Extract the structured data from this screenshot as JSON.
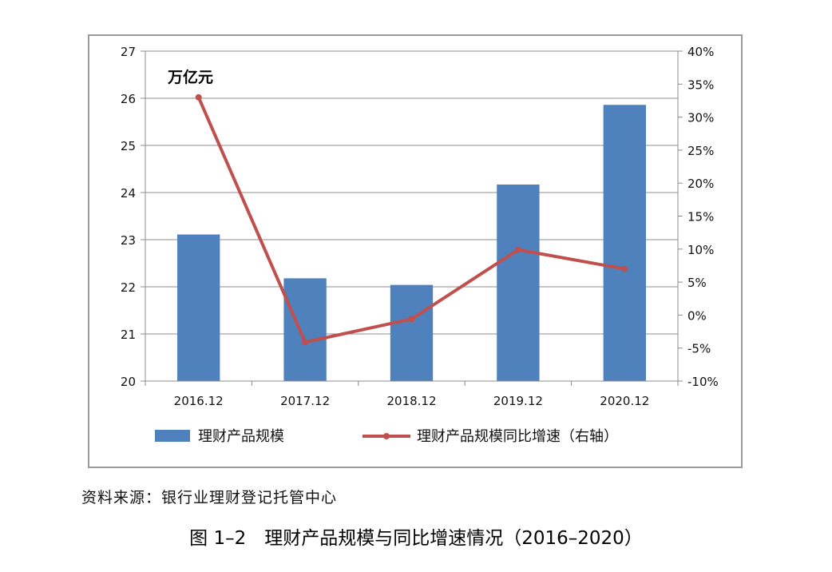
{
  "chart_data": {
    "type": "bar",
    "categories": [
      "2016.12",
      "2017.12",
      "2018.12",
      "2019.12",
      "2020.12"
    ],
    "series": [
      {
        "name": "理财产品规模",
        "type": "bar",
        "axis": "left",
        "color": "#4f81bd",
        "values": [
          23.11,
          22.18,
          22.04,
          24.17,
          25.86
        ]
      },
      {
        "name": "理财产品规模同比增速（右轴）",
        "type": "line",
        "axis": "right",
        "color": "#c0504d",
        "values": [
          33.0,
          -4.1,
          -0.6,
          9.9,
          7.0
        ]
      }
    ],
    "y_left": {
      "min": 20,
      "max": 27,
      "step": 1,
      "unit_label": "万亿元",
      "tick_labels": [
        "20",
        "21",
        "22",
        "23",
        "24",
        "25",
        "26",
        "27"
      ]
    },
    "y_right": {
      "min": -10,
      "max": 40,
      "step": 5,
      "tick_labels": [
        "-10%",
        "-5%",
        "0%",
        "5%",
        "10%",
        "15%",
        "20%",
        "25%",
        "30%",
        "35%",
        "40%"
      ]
    },
    "grid": true,
    "legend": {
      "position": "bottom"
    }
  },
  "source_note": "资料来源：银行业理财登记托管中心",
  "caption": "图 1–2　理财产品规模与同比增速情况（2016–2020）"
}
